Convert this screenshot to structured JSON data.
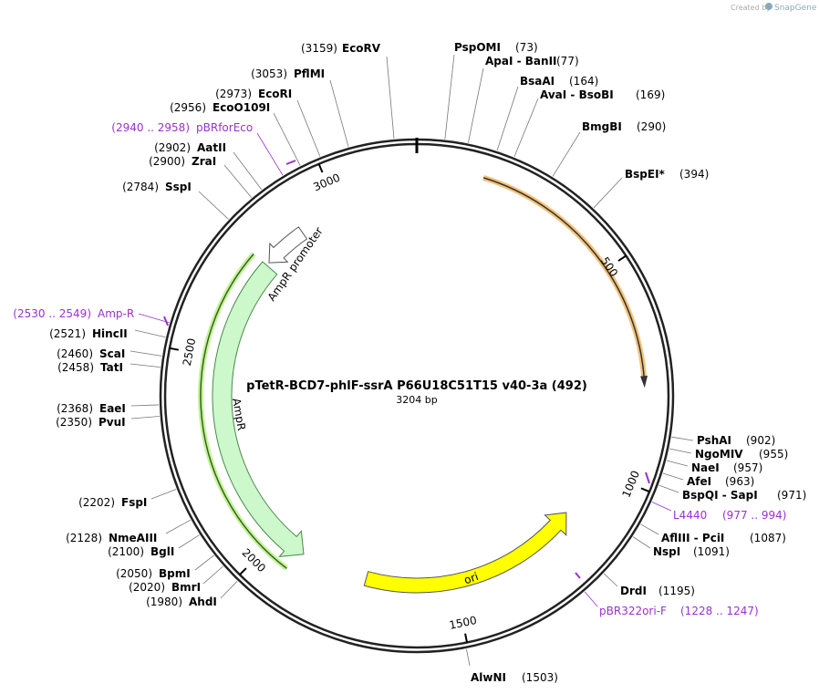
{
  "branding": {
    "created_by": "Created by",
    "product": "SnapGene"
  },
  "map": {
    "title": "pTetR-BCD7-phlF-ssrA P66U18C51T15 v40-3a (492)",
    "length": "3204 bp",
    "ruler": [
      500,
      1000,
      1500,
      2000,
      2500,
      3000
    ],
    "features": [
      {
        "label": "AmpR"
      },
      {
        "label": "AmpR promoter"
      },
      {
        "label": "ori"
      }
    ],
    "sites": [
      {
        "name": "EcoRV",
        "position": "(3159)"
      },
      {
        "name": "PspOMI",
        "position": "(73)"
      },
      {
        "name": "ApaI - BanII",
        "position": "(77)"
      },
      {
        "name": "BsaAI",
        "position": "(164)"
      },
      {
        "name": "AvaI - BsoBI",
        "position": "(169)"
      },
      {
        "name": "BmgBI",
        "position": "(290)"
      },
      {
        "name": "BspEI*",
        "position": "(394)"
      },
      {
        "name": "PshAI",
        "position": "(902)"
      },
      {
        "name": "NgoMIV",
        "position": "(955)"
      },
      {
        "name": "NaeI",
        "position": "(957)"
      },
      {
        "name": "AfeI",
        "position": "(963)"
      },
      {
        "name": "BspQI - SapI",
        "position": "(971)"
      },
      {
        "name": "L4440",
        "position": "(977 .. 994)"
      },
      {
        "name": "AflIII - PciI",
        "position": "(1087)"
      },
      {
        "name": "NspI",
        "position": "(1091)"
      },
      {
        "name": "DrdI",
        "position": "(1195)"
      },
      {
        "name": "pBR322ori-F",
        "position": "(1228 .. 1247)"
      },
      {
        "name": "AlwNI",
        "position": "(1503)"
      },
      {
        "name": "PflMI",
        "position": "(3053)"
      },
      {
        "name": "EcoRI",
        "position": "(2973)"
      },
      {
        "name": "EcoO109I",
        "position": "(2956)"
      },
      {
        "name": "pBRforEco",
        "position": "(2940 .. 2958)"
      },
      {
        "name": "AatII",
        "position": "(2902)"
      },
      {
        "name": "ZraI",
        "position": "(2900)"
      },
      {
        "name": "SspI",
        "position": "(2784)"
      },
      {
        "name": "Amp-R",
        "position": "(2530 .. 2549)"
      },
      {
        "name": "HincII",
        "position": "(2521)"
      },
      {
        "name": "ScaI",
        "position": "(2460)"
      },
      {
        "name": "TatI",
        "position": "(2458)"
      },
      {
        "name": "EaeI",
        "position": "(2368)"
      },
      {
        "name": "PvuI",
        "position": "(2350)"
      },
      {
        "name": "FspI",
        "position": "(2202)"
      },
      {
        "name": "NmeAIII",
        "position": "(2128)"
      },
      {
        "name": "BglI",
        "position": "(2100)"
      },
      {
        "name": "BpmI",
        "position": "(2050)"
      },
      {
        "name": "BmrI",
        "position": "(2020)"
      },
      {
        "name": "AhdI",
        "position": "(1980)"
      }
    ]
  }
}
